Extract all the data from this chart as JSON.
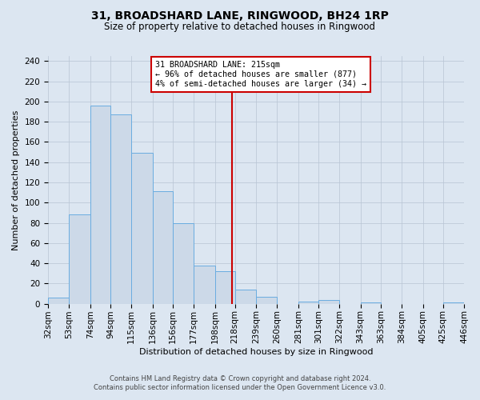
{
  "title": "31, BROADSHARD LANE, RINGWOOD, BH24 1RP",
  "subtitle": "Size of property relative to detached houses in Ringwood",
  "xlabel": "Distribution of detached houses by size in Ringwood",
  "ylabel": "Number of detached properties",
  "bin_edges": [
    32,
    53,
    74,
    94,
    115,
    136,
    156,
    177,
    198,
    218,
    239,
    260,
    281,
    301,
    322,
    343,
    363,
    384,
    405,
    425,
    446
  ],
  "bin_labels": [
    "32sqm",
    "53sqm",
    "74sqm",
    "94sqm",
    "115sqm",
    "136sqm",
    "156sqm",
    "177sqm",
    "198sqm",
    "218sqm",
    "239sqm",
    "260sqm",
    "281sqm",
    "301sqm",
    "322sqm",
    "343sqm",
    "363sqm",
    "384sqm",
    "405sqm",
    "425sqm",
    "446sqm"
  ],
  "bar_heights": [
    6,
    88,
    196,
    187,
    149,
    111,
    80,
    38,
    32,
    14,
    7,
    0,
    2,
    4,
    0,
    1,
    0,
    0,
    0,
    1
  ],
  "bar_facecolor": "#ccd9e8",
  "bar_edgecolor": "#6aace0",
  "vline_x": 215,
  "vline_color": "#cc0000",
  "annotation_title": "31 BROADSHARD LANE: 215sqm",
  "annotation_line1": "← 96% of detached houses are smaller (877)",
  "annotation_line2": "4% of semi-detached houses are larger (34) →",
  "annotation_box_edgecolor": "#cc0000",
  "annotation_box_facecolor": "#ffffff",
  "ylim": [
    0,
    245
  ],
  "yticks": [
    0,
    20,
    40,
    60,
    80,
    100,
    120,
    140,
    160,
    180,
    200,
    220,
    240
  ],
  "background_color": "#dce6f1",
  "plot_background_color": "#dce6f1",
  "title_fontsize": 10,
  "subtitle_fontsize": 8.5,
  "xlabel_fontsize": 8,
  "ylabel_fontsize": 8,
  "tick_fontsize": 7.5,
  "footer_line1": "Contains HM Land Registry data © Crown copyright and database right 2024.",
  "footer_line2": "Contains public sector information licensed under the Open Government Licence v3.0."
}
